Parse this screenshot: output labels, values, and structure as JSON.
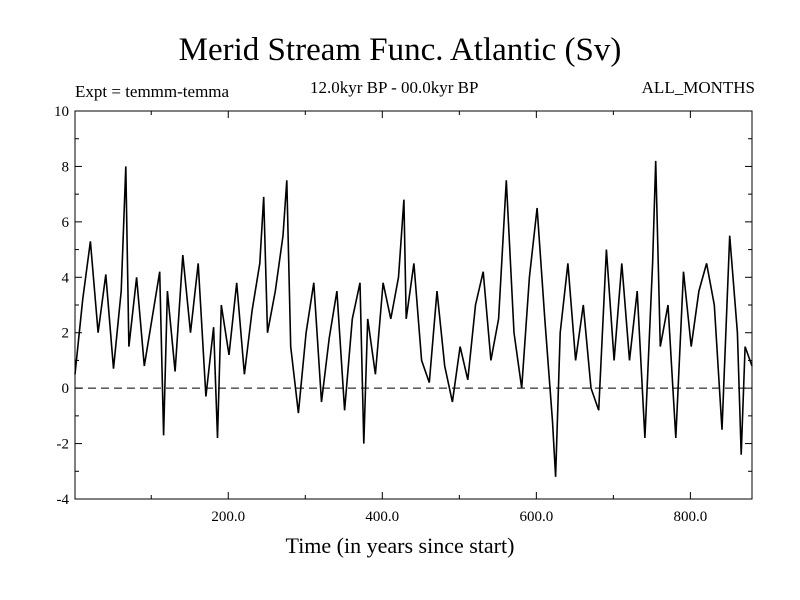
{
  "chart_data": {
    "type": "line",
    "title": "Merid Stream Func. Atlantic (Sv)",
    "experiment": "Expt = temmm-temma",
    "period": "12.0kyr BP - 00.0kyr BP",
    "months": "ALL_MONTHS",
    "xlabel": "Time (in years since start)",
    "ylabel": "",
    "xlim": [
      1,
      880
    ],
    "ylim": [
      -4,
      10
    ],
    "xticks": [
      200,
      400,
      600,
      800
    ],
    "xtick_labels": [
      "200.0",
      "400.0",
      "600.0",
      "800.0"
    ],
    "yticks": [
      -4,
      -2,
      0,
      2,
      4,
      6,
      8,
      10
    ],
    "ytick_labels": [
      "-4",
      "-2",
      "0",
      "2",
      "4",
      "6",
      "8",
      "10"
    ],
    "reference_line": {
      "y": 0,
      "style": "dashed"
    },
    "series": [
      {
        "name": "temmm-temma",
        "x": [
          1,
          11,
          21,
          31,
          41,
          51,
          61,
          67,
          71,
          81,
          91,
          101,
          111,
          116,
          121,
          131,
          141,
          151,
          161,
          171,
          181,
          186,
          191,
          201,
          211,
          221,
          231,
          241,
          246,
          251,
          261,
          271,
          276,
          281,
          291,
          301,
          311,
          321,
          331,
          341,
          351,
          361,
          371,
          376,
          381,
          391,
          401,
          411,
          421,
          428,
          431,
          441,
          451,
          461,
          471,
          481,
          491,
          501,
          511,
          521,
          531,
          541,
          551,
          561,
          571,
          581,
          591,
          601,
          611,
          621,
          625,
          631,
          641,
          651,
          661,
          671,
          681,
          691,
          701,
          711,
          721,
          731,
          741,
          751,
          755,
          761,
          771,
          781,
          791,
          801,
          811,
          821,
          831,
          841,
          851,
          861,
          866,
          871,
          880
        ],
        "values": [
          0.5,
          3.2,
          5.3,
          2.0,
          4.1,
          0.7,
          3.5,
          8.0,
          1.5,
          4.0,
          0.8,
          2.5,
          4.2,
          -1.7,
          3.5,
          0.6,
          4.8,
          2.0,
          4.5,
          -0.3,
          2.2,
          -1.8,
          3.0,
          1.2,
          3.8,
          0.5,
          2.8,
          4.5,
          6.9,
          2.0,
          3.5,
          5.5,
          7.5,
          1.5,
          -0.9,
          2.0,
          3.8,
          -0.5,
          1.8,
          3.5,
          -0.8,
          2.5,
          3.8,
          -2.0,
          2.5,
          0.5,
          3.8,
          2.5,
          4.0,
          6.8,
          2.5,
          4.5,
          1.0,
          0.2,
          3.5,
          0.8,
          -0.5,
          1.5,
          0.3,
          3.0,
          4.2,
          1.0,
          2.5,
          7.5,
          2.0,
          0.0,
          4.0,
          6.5,
          2.5,
          -1.2,
          -3.2,
          2.0,
          4.5,
          1.0,
          3.0,
          0.0,
          -0.8,
          5.0,
          1.0,
          4.5,
          1.0,
          3.5,
          -1.8,
          4.5,
          8.2,
          1.5,
          3.0,
          -1.8,
          4.2,
          1.5,
          3.5,
          4.5,
          3.0,
          -1.5,
          5.5,
          2.0,
          -2.4,
          1.5,
          0.8
        ]
      }
    ]
  }
}
